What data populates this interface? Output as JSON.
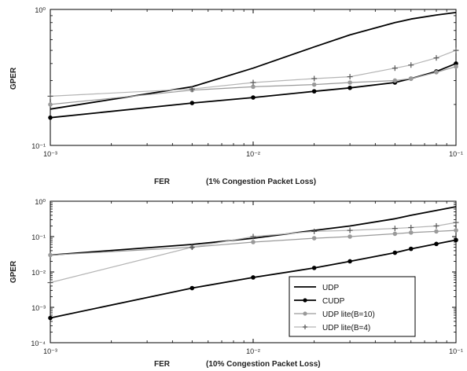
{
  "chart_data": [
    {
      "type": "line",
      "xscale": "log",
      "yscale": "log",
      "xlim": [
        0.001,
        0.1
      ],
      "ylim": [
        0.1,
        1
      ],
      "xlabel": "FER",
      "xlabel_note": "(1% Congestion Packet Loss)",
      "ylabel": "GPER",
      "xticks": [
        "10⁻³",
        "10⁻²",
        "10⁻¹"
      ],
      "yticks": [
        "10⁰",
        "10⁻¹"
      ],
      "series": [
        {
          "name": "UDP",
          "color": "#000000",
          "marker": "none",
          "width": 1.8,
          "x": [
            0.001,
            0.005,
            0.01,
            0.02,
            0.03,
            0.05,
            0.06,
            0.08,
            0.1
          ],
          "y": [
            0.185,
            0.27,
            0.37,
            0.53,
            0.65,
            0.8,
            0.85,
            0.91,
            0.95
          ]
        },
        {
          "name": "CUDP",
          "color": "#000000",
          "marker": "dot",
          "width": 1.8,
          "x": [
            0.001,
            0.005,
            0.01,
            0.02,
            0.03,
            0.05,
            0.06,
            0.08,
            0.1
          ],
          "y": [
            0.16,
            0.205,
            0.225,
            0.25,
            0.265,
            0.29,
            0.31,
            0.35,
            0.4
          ]
        },
        {
          "name": "UDP lite(B=10)",
          "color": "#9a9a9a",
          "marker": "dot",
          "width": 1.2,
          "x": [
            0.001,
            0.005,
            0.01,
            0.02,
            0.03,
            0.05,
            0.06,
            0.08,
            0.1
          ],
          "y": [
            0.2,
            0.255,
            0.27,
            0.28,
            0.29,
            0.3,
            0.31,
            0.345,
            0.38
          ]
        },
        {
          "name": "UDP lite(B=4)",
          "color": "#b5b5b5",
          "marker": "plus",
          "width": 1.2,
          "x": [
            0.001,
            0.005,
            0.01,
            0.02,
            0.03,
            0.05,
            0.06,
            0.08,
            0.1
          ],
          "y": [
            0.23,
            0.26,
            0.29,
            0.31,
            0.32,
            0.37,
            0.39,
            0.44,
            0.5
          ]
        }
      ]
    },
    {
      "type": "line",
      "xscale": "log",
      "yscale": "log",
      "xlim": [
        0.001,
        0.1
      ],
      "ylim": [
        0.0001,
        1
      ],
      "xlabel": "FER",
      "xlabel_note": "(10% Congestion Packet Loss)",
      "ylabel": "GPER",
      "xticks": [
        "10⁻³",
        "10⁻²",
        "10⁻¹"
      ],
      "yticks": [
        "10⁰",
        "10⁻¹",
        "10⁻²",
        "10⁻³",
        "10⁻⁴"
      ],
      "legend": {
        "position": "lower-right",
        "entries": [
          "UDP",
          "CUDP",
          "UDP lite(B=10)",
          "UDP lite(B=4)"
        ]
      },
      "series": [
        {
          "name": "UDP",
          "color": "#000000",
          "marker": "none",
          "width": 1.8,
          "x": [
            0.001,
            0.005,
            0.01,
            0.02,
            0.03,
            0.05,
            0.06,
            0.08,
            0.1
          ],
          "y": [
            0.03,
            0.06,
            0.09,
            0.15,
            0.2,
            0.32,
            0.4,
            0.55,
            0.7
          ]
        },
        {
          "name": "CUDP",
          "color": "#000000",
          "marker": "dot",
          "width": 1.8,
          "x": [
            0.001,
            0.005,
            0.01,
            0.02,
            0.03,
            0.05,
            0.06,
            0.08,
            0.1
          ],
          "y": [
            0.0005,
            0.0035,
            0.007,
            0.013,
            0.02,
            0.035,
            0.045,
            0.062,
            0.08
          ]
        },
        {
          "name": "UDP lite(B=10)",
          "color": "#9a9a9a",
          "marker": "dot",
          "width": 1.2,
          "x": [
            0.001,
            0.005,
            0.01,
            0.02,
            0.03,
            0.05,
            0.06,
            0.08,
            0.1
          ],
          "y": [
            0.03,
            0.05,
            0.07,
            0.09,
            0.1,
            0.12,
            0.13,
            0.14,
            0.15
          ]
        },
        {
          "name": "UDP lite(B=4)",
          "color": "#b5b5b5",
          "marker": "plus",
          "width": 1.2,
          "x": [
            0.001,
            0.005,
            0.01,
            0.02,
            0.03,
            0.05,
            0.06,
            0.08,
            0.1
          ],
          "y": [
            0.005,
            0.05,
            0.1,
            0.14,
            0.15,
            0.17,
            0.18,
            0.2,
            0.25
          ]
        }
      ]
    }
  ]
}
